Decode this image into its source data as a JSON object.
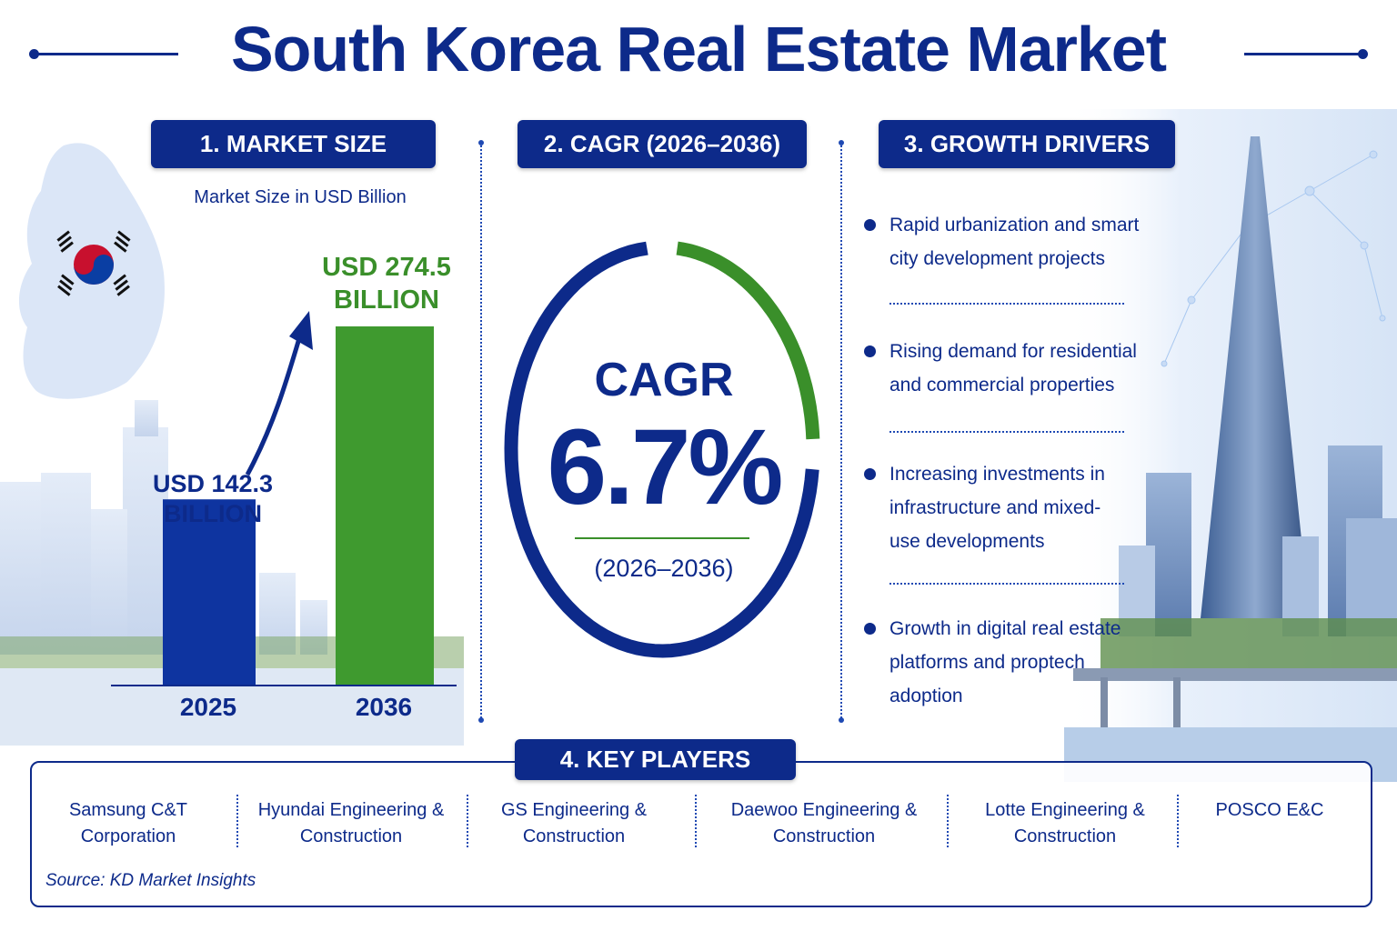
{
  "title": "South Korea Real Estate Market",
  "sections": {
    "market_size": {
      "header": "1. MARKET SIZE",
      "subtitle": "Market Size in USD Billion",
      "bar_2025_label_line1": "USD 142.3",
      "bar_2025_label_line2": "BILLION",
      "bar_2036_label_line1": "USD 274.5",
      "bar_2036_label_line2": "BILLION"
    },
    "cagr": {
      "header": "2. CAGR (2026–2036)",
      "label": "CAGR",
      "value": "6.7%",
      "period": "(2026–2036)"
    },
    "growth_drivers": {
      "header": "3. GROWTH DRIVERS",
      "items": [
        "Rapid urbanization and smart city development projects",
        "Rising demand for residential and commercial properties",
        "Increasing investments in infrastructure and mixed-use developments",
        "Growth in digital real estate platforms and proptech adoption"
      ]
    },
    "key_players": {
      "header": "4. KEY PLAYERS",
      "players": [
        [
          "Samsung C&T",
          "Corporation"
        ],
        [
          "Hyundai Engineering &",
          "Construction"
        ],
        [
          "GS Engineering &",
          "Construction"
        ],
        [
          "Daewoo Engineering &",
          "Construction"
        ],
        [
          "Lotte Engineering &",
          "Construction"
        ],
        [
          "POSCO E&C",
          ""
        ]
      ],
      "source": "Source: KD Market Insights"
    }
  },
  "colors": {
    "navy": "#0d2a8a",
    "green": "#3a8f2a",
    "bar_2025": "#0e34a0",
    "bar_2036": "#3f9a2f"
  },
  "chart_data": {
    "type": "bar",
    "title": "",
    "categories": [
      "2025",
      "2036"
    ],
    "values": [
      142.3,
      274.5
    ],
    "ylabel": "",
    "xlabel": ""
  },
  "cagr_ring": {
    "green_fraction": 0.25
  }
}
